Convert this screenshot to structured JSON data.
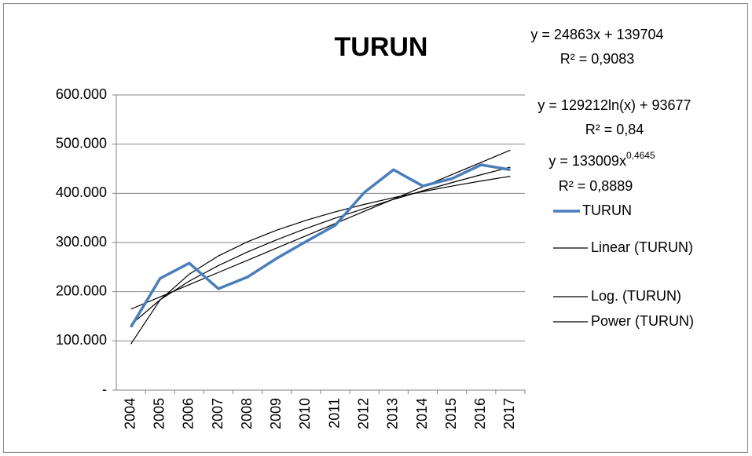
{
  "chart_data": {
    "type": "line",
    "title": "TURUN",
    "categories": [
      "2004",
      "2005",
      "2006",
      "2007",
      "2008",
      "2009",
      "2010",
      "2011",
      "2012",
      "2013",
      "2014",
      "2015",
      "2016",
      "2017"
    ],
    "series": [
      {
        "name": "TURUN",
        "color": "#4a7ebb",
        "values": [
          128000,
          227000,
          258000,
          206000,
          230000,
          268000,
          302000,
          335000,
          402000,
          448000,
          415000,
          430000,
          458000,
          448000
        ]
      },
      {
        "name": "Linear (TURUN)",
        "color": "#000000",
        "values": [
          164567,
          189430,
          214293,
          239156,
          264019,
          288882,
          313745,
          338608,
          363471,
          388334,
          413197,
          438060,
          462923,
          487786
        ]
      },
      {
        "name": "Log. (TURUN)",
        "color": "#000000",
        "values": [
          93677,
          183239,
          235630,
          272806,
          301635,
          325202,
          345114,
          362363,
          377584,
          391203,
          403517,
          414759,
          425096,
          434680
        ]
      },
      {
        "name": "Power (TURUN)",
        "color": "#000000",
        "values": [
          133009,
          183539,
          221567,
          253263,
          280888,
          305733,
          328426,
          349481,
          369087,
          387602,
          405132,
          421891,
          437812,
          453202
        ]
      }
    ],
    "annotations": [
      {
        "text": "y = 24863x + 139704"
      },
      {
        "text": "R² = 0,9083"
      },
      {
        "text": "y = 129212ln(x) + 93677"
      },
      {
        "text": "R² = 0,84"
      },
      {
        "text": "y = 133009x",
        "sup": "0,4645"
      },
      {
        "text": "R² = 0,8889"
      }
    ],
    "ylim": [
      0,
      600000
    ],
    "yticks": [
      {
        "value": 0,
        "label": "-"
      },
      {
        "value": 100000,
        "label": "100.000"
      },
      {
        "value": 200000,
        "label": "200.000"
      },
      {
        "value": 300000,
        "label": "300.000"
      },
      {
        "value": 400000,
        "label": "400.000"
      },
      {
        "value": 500000,
        "label": "500.000"
      },
      {
        "value": 600000,
        "label": "600.000"
      }
    ],
    "grid": true
  }
}
